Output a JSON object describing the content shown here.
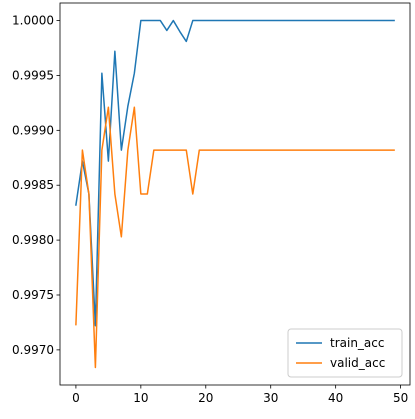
{
  "chart_data": {
    "type": "line",
    "x": [
      0,
      1,
      2,
      3,
      4,
      5,
      6,
      7,
      8,
      9,
      10,
      11,
      12,
      13,
      14,
      15,
      16,
      17,
      18,
      19,
      20,
      21,
      22,
      23,
      24,
      25,
      26,
      27,
      28,
      29,
      30,
      31,
      32,
      33,
      34,
      35,
      36,
      37,
      38,
      39,
      40,
      41,
      42,
      43,
      44,
      45,
      46,
      47,
      48,
      49
    ],
    "series": [
      {
        "name": "train_acc",
        "color": "#1f77b4",
        "values": [
          0.99832,
          0.99872,
          0.99842,
          0.99722,
          0.99952,
          0.99872,
          0.99972,
          0.99882,
          0.99922,
          0.99952,
          1.0,
          1.0,
          1.0,
          1.0,
          0.99991,
          1.0,
          0.9999,
          0.99981,
          1.0,
          1.0,
          1.0,
          1.0,
          1.0,
          1.0,
          1.0,
          1.0,
          1.0,
          1.0,
          1.0,
          1.0,
          1.0,
          1.0,
          1.0,
          1.0,
          1.0,
          1.0,
          1.0,
          1.0,
          1.0,
          1.0,
          1.0,
          1.0,
          1.0,
          1.0,
          1.0,
          1.0,
          1.0,
          1.0,
          1.0,
          1.0
        ]
      },
      {
        "name": "valid_acc",
        "color": "#ff7f0e",
        "values": [
          0.99723,
          0.99882,
          0.99842,
          0.99684,
          0.99882,
          0.99921,
          0.99842,
          0.99803,
          0.99882,
          0.99921,
          0.99842,
          0.99842,
          0.99882,
          0.99882,
          0.99882,
          0.99882,
          0.99882,
          0.99882,
          0.99842,
          0.99882,
          0.99882,
          0.99882,
          0.99882,
          0.99882,
          0.99882,
          0.99882,
          0.99882,
          0.99882,
          0.99882,
          0.99882,
          0.99882,
          0.99882,
          0.99882,
          0.99882,
          0.99882,
          0.99882,
          0.99882,
          0.99882,
          0.99882,
          0.99882,
          0.99882,
          0.99882,
          0.99882,
          0.99882,
          0.99882,
          0.99882,
          0.99882,
          0.99882,
          0.99882,
          0.99882
        ]
      }
    ],
    "xticks": [
      0,
      10,
      20,
      30,
      40,
      50
    ],
    "xtick_labels": [
      "0",
      "10",
      "20",
      "30",
      "40",
      "50"
    ],
    "yticks": [
      0.997,
      0.9975,
      0.998,
      0.9985,
      0.999,
      0.9995,
      1.0
    ],
    "ytick_labels": [
      "0.9970",
      "0.9975",
      "0.9980",
      "0.9985",
      "0.9990",
      "0.9995",
      "1.0000"
    ],
    "xlim": [
      -2.45,
      51.45
    ],
    "ylim": [
      0.99668,
      1.00016
    ],
    "grid": false,
    "legend": {
      "position": "lower-right",
      "entries": [
        "train_acc",
        "valid_acc"
      ]
    }
  }
}
